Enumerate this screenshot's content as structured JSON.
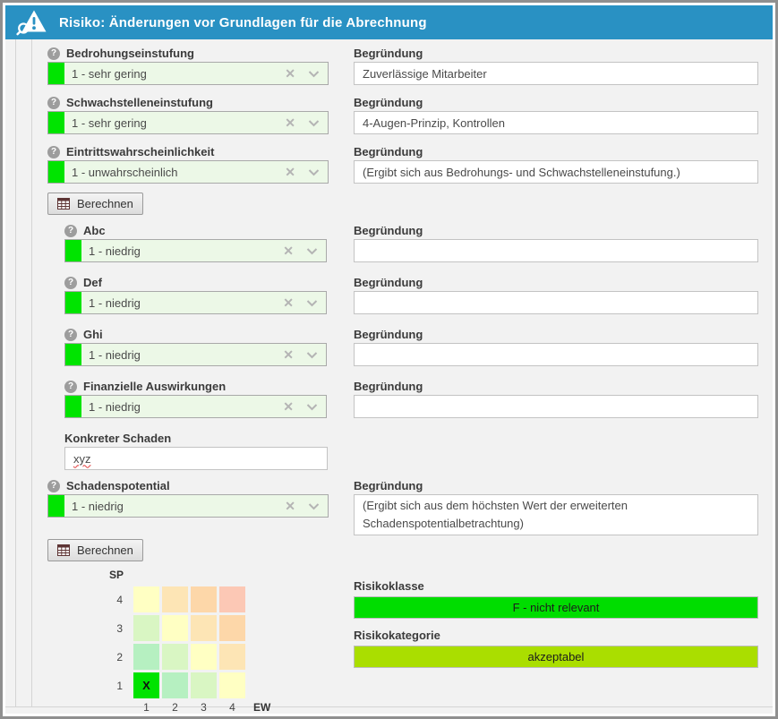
{
  "window": {
    "title": "Risiko: Änderungen vor Grundlagen für die Abrechnung"
  },
  "icons": {
    "title_icon": "warning-triangle-with-magnifier",
    "help_icon": "?",
    "clear_icon": "✕",
    "dropdown_icon": "chevron-down",
    "calculator_icon": "table-grid"
  },
  "labels": {
    "begruendung": "Begründung"
  },
  "buttons": {
    "berechnen1": "Berechnen",
    "berechnen2": "Berechnen"
  },
  "fields": [
    {
      "key": "bedrohungseinstufung",
      "label": "Bedrohungseinstufung",
      "value": "1 - sehr gering",
      "begruendung": "Zuverlässige Mitarbeiter",
      "indent": false,
      "help": true
    },
    {
      "key": "schwachstelleneinstufung",
      "label": "Schwachstelleneinstufung",
      "value": "1 - sehr gering",
      "begruendung": "4-Augen-Prinzip, Kontrollen",
      "indent": false,
      "help": true
    },
    {
      "key": "eintrittswahrscheinlichkeit",
      "label": "Eintrittswahrscheinlichkeit",
      "value": "1 - unwahrscheinlich",
      "begruendung": "(Ergibt sich aus Bedrohungs- und Schwachstelleneinstufung.)",
      "indent": false,
      "help": true
    },
    {
      "key": "abc",
      "label": "Abc",
      "value": "1 - niedrig",
      "begruendung": "",
      "indent": true,
      "help": true
    },
    {
      "key": "def",
      "label": "Def",
      "value": "1 - niedrig",
      "begruendung": "",
      "indent": true,
      "help": true
    },
    {
      "key": "ghi",
      "label": "Ghi",
      "value": "1 - niedrig",
      "begruendung": "",
      "indent": true,
      "help": true
    },
    {
      "key": "finanzielle_auswirkungen",
      "label": "Finanzielle Auswirkungen",
      "value": "1 - niedrig",
      "begruendung": "",
      "indent": true,
      "help": true
    }
  ],
  "konkreter_schaden": {
    "label": "Konkreter Schaden",
    "value": "xyz"
  },
  "schadenspotential": {
    "label": "Schadenspotential",
    "value": "1 - niedrig",
    "begruendung": "(Ergibt sich aus dem höchsten Wert der erweiterten Schadenspotentialbetrachtung)"
  },
  "matrix": {
    "sp_axis_label": "SP",
    "ew_axis_label": "EW",
    "row_labels": [
      "4",
      "3",
      "2",
      "1"
    ],
    "col_labels": [
      "1",
      "2",
      "3",
      "4"
    ],
    "marker": {
      "row_index": 3,
      "col_index": 0,
      "text": "X"
    },
    "cell_colors": [
      [
        "#ffffc3",
        "#fde5b5",
        "#fdd7a9",
        "#fcc8b5"
      ],
      [
        "#d9f6c3",
        "#ffffc3",
        "#fde5b5",
        "#fdd7a9"
      ],
      [
        "#b6f0c1",
        "#d9f6c3",
        "#ffffc3",
        "#fde5b5"
      ],
      [
        "#00e300",
        "#b6f0c1",
        "#d9f6c3",
        "#ffffc3"
      ]
    ]
  },
  "results": {
    "risikoklasse": {
      "label": "Risikoklasse",
      "value": "F - nicht relevant",
      "color": "#00dd00"
    },
    "risikokategorie": {
      "label": "Risikokategorie",
      "value": "akzeptabel",
      "color": "#aade00"
    }
  },
  "colors": {
    "header_bg": "#2991c3",
    "select_bg": "#ecf8e7",
    "select_square": "#00e400",
    "content_bg": "#f2f2f2"
  }
}
